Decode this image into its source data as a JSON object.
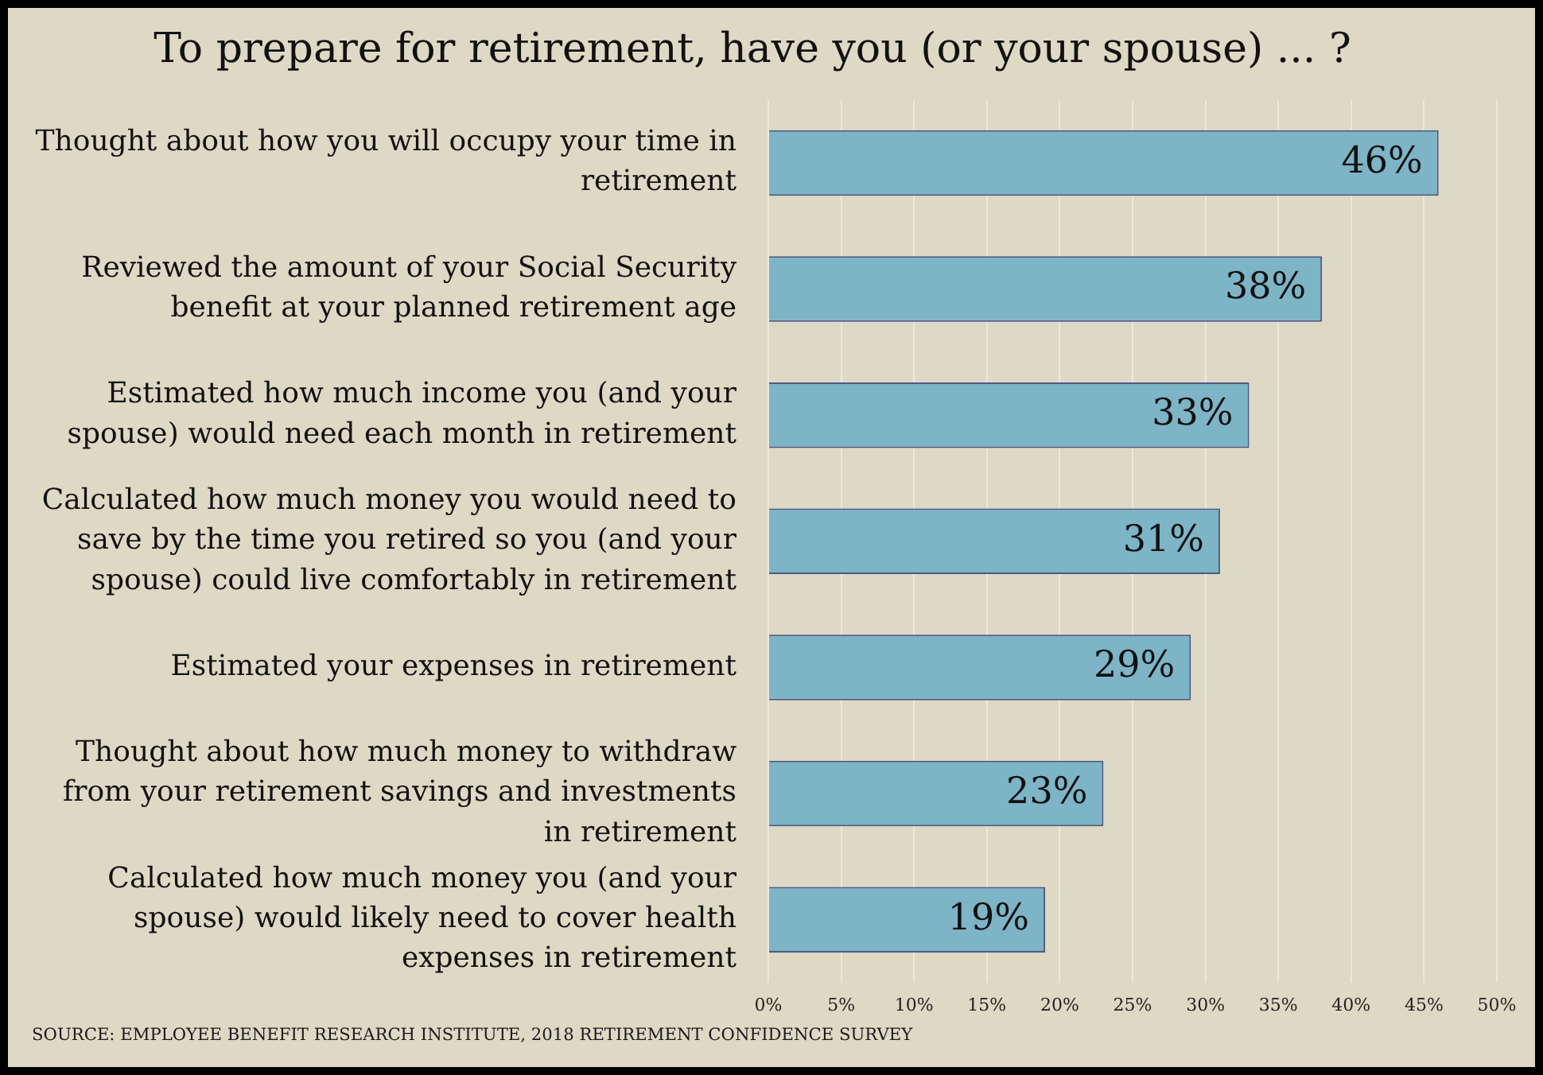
{
  "chart_data": {
    "type": "bar",
    "orientation": "horizontal",
    "title": "To prepare for retirement, have you (or your spouse) ... ?",
    "categories": [
      "Thought about how you will occupy your time in retirement",
      "Reviewed the amount of your Social Security benefit at your planned retirement age",
      "Estimated how much income you (and your spouse) would need each month in retirement",
      "Calculated how much money you would need to save by the time you retired so you (and your spouse) could live comfortably in retirement",
      "Estimated your expenses in retirement",
      "Thought about how much money to withdraw from your retirement savings and investments in retirement",
      "Calculated how much money you (and your spouse) would likely need to cover health expenses in retirement"
    ],
    "values": [
      46,
      38,
      33,
      31,
      29,
      23,
      19
    ],
    "value_labels": [
      "46%",
      "38%",
      "33%",
      "31%",
      "29%",
      "23%",
      "19%"
    ],
    "color": "#7db4c6",
    "xlim": [
      0,
      50
    ],
    "xticks": [
      {
        "value": 0,
        "label": "0%"
      },
      {
        "value": 5,
        "label": "5%"
      },
      {
        "value": 10,
        "label": "10%"
      },
      {
        "value": 15,
        "label": "15%"
      },
      {
        "value": 20,
        "label": "20%"
      },
      {
        "value": 25,
        "label": "25%"
      },
      {
        "value": 30,
        "label": "30%"
      },
      {
        "value": 35,
        "label": "35%"
      },
      {
        "value": 40,
        "label": "40%"
      },
      {
        "value": 45,
        "label": "45%"
      },
      {
        "value": 50,
        "label": "50%"
      }
    ],
    "grid": "x",
    "annotations": [
      "SOURCE: EMPLOYEE BENEFIT RESEARCH INSTITUTE, 2018 RETIREMENT CONFIDENCE SURVEY"
    ]
  }
}
